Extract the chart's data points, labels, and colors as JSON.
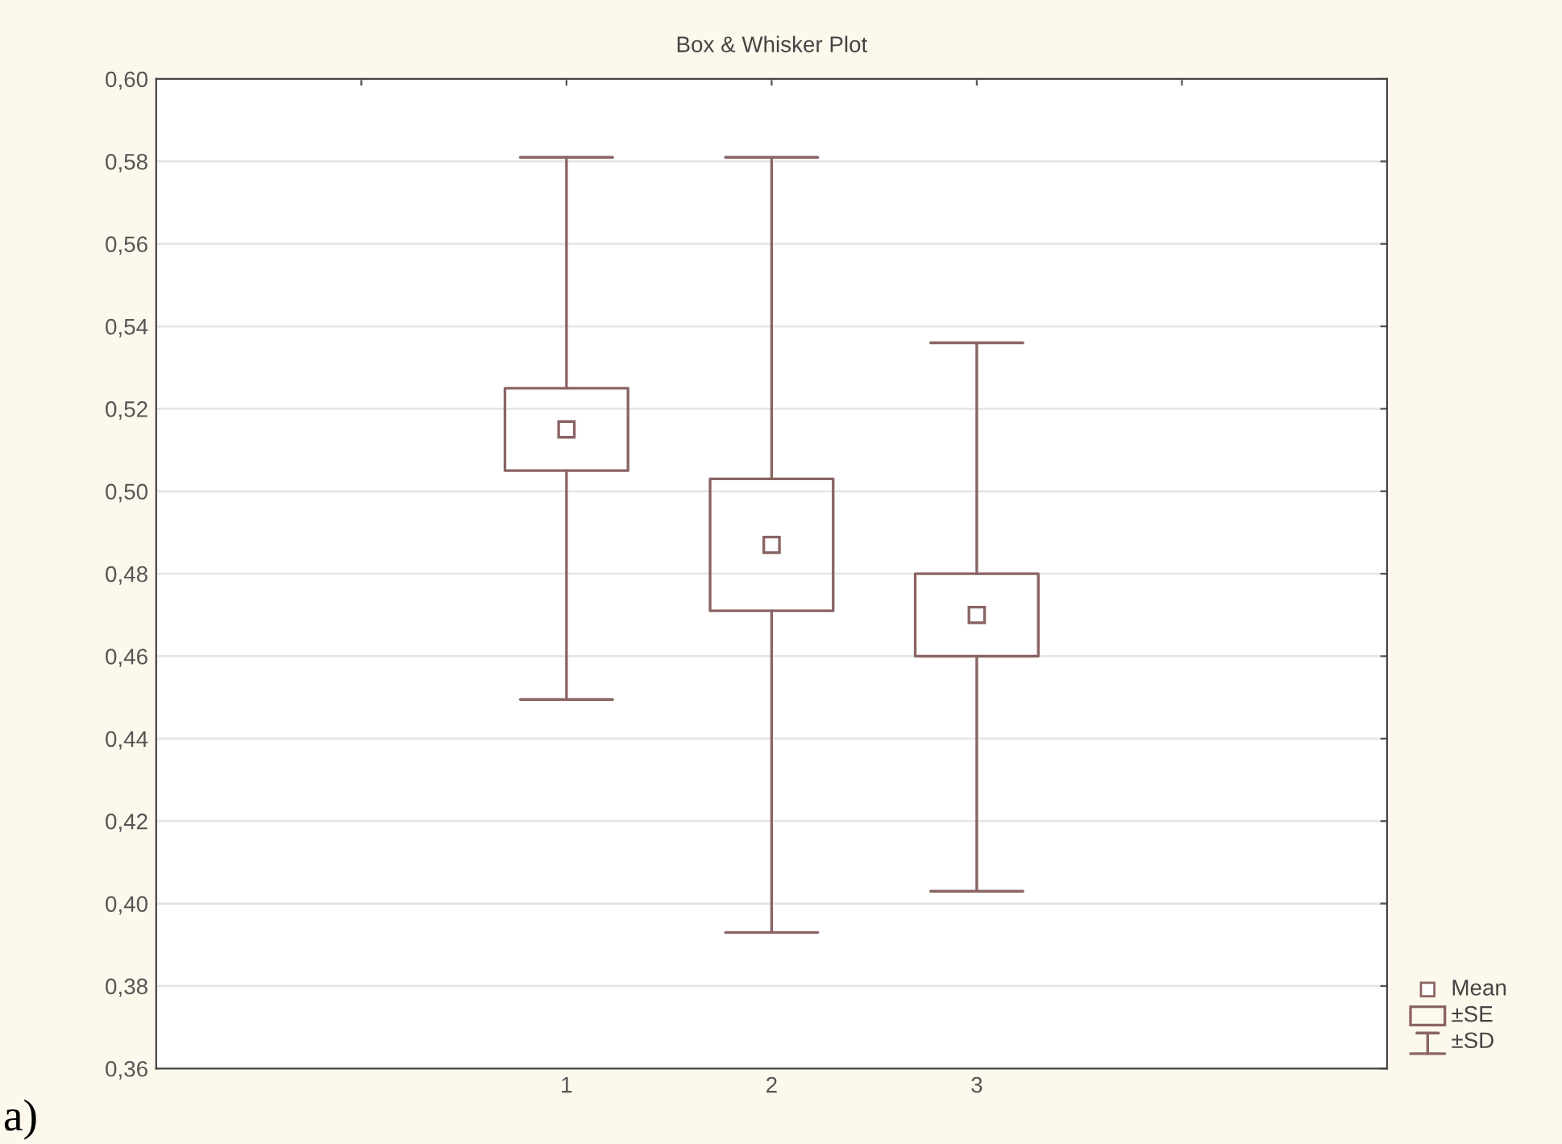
{
  "chart_data": {
    "type": "box",
    "title": "Box & Whisker Plot",
    "categories": [
      null,
      "1",
      "2",
      "3",
      null
    ],
    "color": "#8a6464",
    "boxes": [
      null,
      {
        "low": 0.4495,
        "q1": 0.505,
        "q3": 0.525,
        "high": 0.581,
        "mean": 0.515
      },
      {
        "low": 0.393,
        "q1": 0.471,
        "q3": 0.503,
        "high": 0.581,
        "mean": 0.487
      },
      {
        "low": 0.403,
        "q1": 0.46,
        "q3": 0.48,
        "high": 0.536,
        "mean": 0.47
      },
      null
    ],
    "ylim": [
      0.36,
      0.6
    ],
    "yticks": [
      {
        "value": 0.36,
        "label": "0,36"
      },
      {
        "value": 0.38,
        "label": "0,38"
      },
      {
        "value": 0.4,
        "label": "0,40"
      },
      {
        "value": 0.42,
        "label": "0,42"
      },
      {
        "value": 0.44,
        "label": "0,44"
      },
      {
        "value": 0.46,
        "label": "0,46"
      },
      {
        "value": 0.48,
        "label": "0,48"
      },
      {
        "value": 0.5,
        "label": "0,50"
      },
      {
        "value": 0.52,
        "label": "0,52"
      },
      {
        "value": 0.54,
        "label": "0,54"
      },
      {
        "value": 0.56,
        "label": "0,56"
      },
      {
        "value": 0.58,
        "label": "0,58"
      },
      {
        "value": 0.6,
        "label": "0,60"
      }
    ],
    "grid": "y",
    "marker": "square",
    "annotations": [
      "Mean",
      "±SE",
      "±SD",
      "a)"
    ]
  }
}
